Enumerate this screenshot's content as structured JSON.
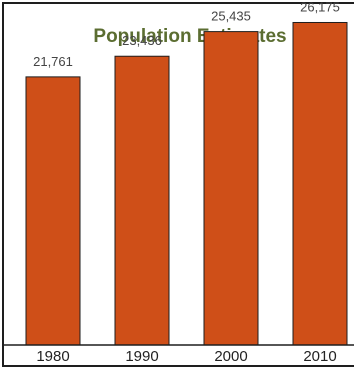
{
  "chart_data": {
    "type": "bar",
    "title": "Population Estimates",
    "categories": [
      "1980",
      "1990",
      "2000",
      "2010"
    ],
    "values": [
      21761,
      23436,
      25435,
      26175
    ],
    "value_labels": [
      "21,761",
      "23,436",
      "25,435",
      "26,175"
    ],
    "xlabel": "",
    "ylabel": "",
    "ylim": [
      0,
      28000
    ],
    "grid": false,
    "legend": "none",
    "colors": {
      "bar": "#cf4f18",
      "title": "#5b6d31",
      "border": "#1e1e1e"
    }
  }
}
